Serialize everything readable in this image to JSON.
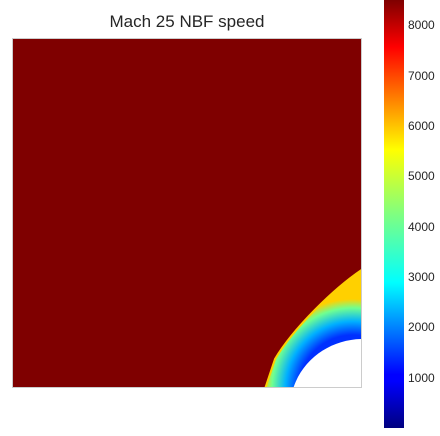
{
  "chart_data": {
    "type": "heatmap",
    "title": "Mach 25 NBF speed",
    "colormap": "jet",
    "colorbar": {
      "range": [
        0,
        8500
      ],
      "ticks": [
        1000,
        2000,
        3000,
        4000,
        5000,
        6000,
        7000,
        8000
      ]
    },
    "freestream_value": 8500,
    "body_value": null,
    "grid": false
  }
}
